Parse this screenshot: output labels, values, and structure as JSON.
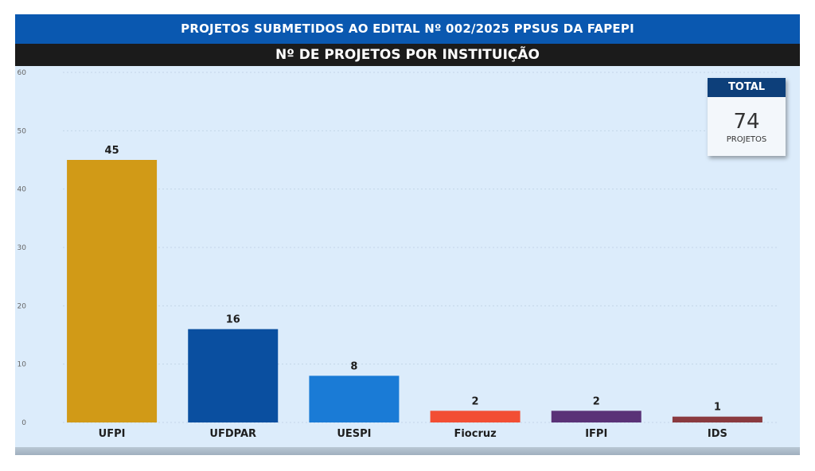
{
  "header": {
    "title": "PROJETOS SUBMETIDOS AO EDITAL Nº 002/2025 PPSUS DA FAPEPI",
    "subtitle": "Nº DE PROJETOS POR INSTITUIÇÃO"
  },
  "total_card": {
    "label": "TOTAL",
    "value": "74",
    "unit": "PROJETOS"
  },
  "chart_data": {
    "type": "bar",
    "title": "Nº DE PROJETOS POR INSTITUIÇÃO",
    "xlabel": "",
    "ylabel": "",
    "categories": [
      "UFPI",
      "UFDPAR",
      "UESPI",
      "Fiocruz",
      "IFPI",
      "IDS"
    ],
    "values": [
      45,
      16,
      8,
      2,
      2,
      1
    ],
    "value_labels": [
      "45",
      "16",
      "8",
      "2",
      "2",
      "1"
    ],
    "colors": [
      "#d19a17",
      "#0a4fa0",
      "#1a7bd6",
      "#f24e34",
      "#5a3277",
      "#8a3a3f"
    ],
    "ylim": [
      0,
      60
    ],
    "yticks": [
      0,
      10,
      20,
      30,
      40,
      50,
      60
    ],
    "ytick_labels": [
      "0",
      "10",
      "20",
      "30",
      "40",
      "50",
      "60"
    ],
    "grid": true,
    "legend": "none"
  }
}
